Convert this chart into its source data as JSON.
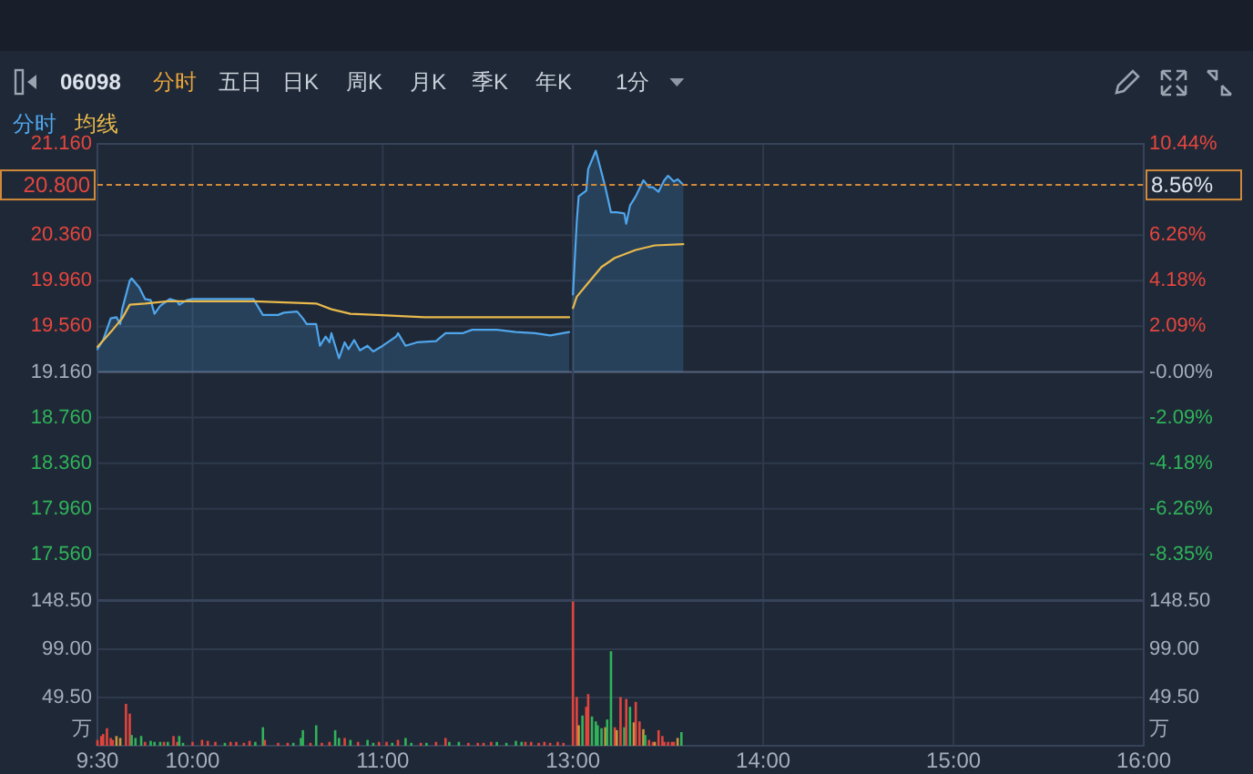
{
  "chart_data": [
    {
      "type": "line",
      "title": "06098",
      "annotations": [
        "分时",
        "五日",
        "日K",
        "周K",
        "月K",
        "季K",
        "年K",
        "1分"
      ],
      "legend": "top left",
      "grid": true,
      "tick_labels": "y",
      "xlim": [
        9.5,
        12
      ],
      "xticks": [
        9.5,
        10,
        11
      ],
      "ylim": [
        17.16,
        21.16
      ],
      "yticks": [
        {
          "value": 21.16,
          "label": "21.160"
        },
        {
          "value": 20.36,
          "label": "20.360"
        },
        {
          "value": 19.96,
          "label": "19.960"
        },
        {
          "value": 19.56,
          "label": "19.560"
        },
        {
          "value": 19.16,
          "label": "19.160"
        },
        {
          "value": 18.76,
          "label": "18.760"
        },
        {
          "value": 18.36,
          "label": "18.360"
        },
        {
          "value": 17.96,
          "label": "17.960"
        },
        {
          "value": 17.56,
          "label": "17.560"
        }
      ],
      "y2lim": [
        -10.44,
        10.44
      ],
      "ref_lines": [
        {
          "axis": "y",
          "value": 20.8,
          "label": "20.800",
          "color": "#d08a3a",
          "line_style": "dashed"
        }
      ],
      "series": [
        {
          "name": "分时",
          "type": "area",
          "color": "#4fa6ec",
          "x": [
            9.5,
            9.53,
            9.57,
            9.6,
            9.62,
            9.63,
            9.67,
            9.68,
            9.72,
            9.75,
            9.78,
            9.8,
            9.83,
            9.88,
            9.92,
            9.93,
            9.97,
            10,
            10.17,
            10.32,
            10.37,
            10.45,
            10.48,
            10.55,
            10.58,
            10.6,
            10.65,
            10.67,
            10.7,
            10.72,
            10.73,
            10.77,
            10.8,
            10.82,
            10.85,
            10.88,
            10.92,
            10.95,
            11,
            11.07,
            11.08,
            11.12,
            11.18,
            11.28,
            11.33,
            11.42,
            11.47,
            11.6,
            11.7,
            11.8,
            11.88,
            11.98
          ],
          "values": [
            19.36,
            19.44,
            19.63,
            19.64,
            19.58,
            19.71,
            19.96,
            19.98,
            19.9,
            19.8,
            19.79,
            19.67,
            19.74,
            19.8,
            19.78,
            19.75,
            19.79,
            19.8,
            19.8,
            19.8,
            19.66,
            19.66,
            19.68,
            19.69,
            19.63,
            19.58,
            19.58,
            19.39,
            19.47,
            19.42,
            19.5,
            19.28,
            19.42,
            19.36,
            19.44,
            19.35,
            19.39,
            19.34,
            19.39,
            19.47,
            19.5,
            19.39,
            19.42,
            19.43,
            19.5,
            19.5,
            19.53,
            19.53,
            19.51,
            19.5,
            19.48,
            19.51
          ]
        },
        {
          "name": "均线",
          "color": "#e8b94d",
          "x": [
            9.5,
            9.58,
            9.63,
            9.67,
            9.75,
            9.87,
            10.32,
            10.65,
            10.73,
            10.83,
            10.97,
            11.22,
            11.6,
            11.98
          ],
          "values": [
            19.38,
            19.53,
            19.63,
            19.75,
            19.76,
            19.78,
            19.78,
            19.76,
            19.71,
            19.67,
            19.66,
            19.64,
            19.64,
            19.64
          ]
        }
      ]
    },
    {
      "type": "line",
      "grid": true,
      "tick_labels": "y",
      "xlim": [
        13,
        16
      ],
      "xticks": [
        13,
        14,
        15,
        16
      ],
      "ylim": [
        17.16,
        21.16
      ],
      "y2lim": [
        -10.44,
        10.44
      ],
      "y2ticks": [
        {
          "value": 10.44,
          "label": "10.44%"
        },
        {
          "value": 6.26,
          "label": "6.26%"
        },
        {
          "value": 4.18,
          "label": "4.18%"
        },
        {
          "value": 2.09,
          "label": "2.09%"
        },
        {
          "value": 0,
          "label": "-0.00%"
        },
        {
          "value": -2.09,
          "label": "-2.09%"
        },
        {
          "value": -4.18,
          "label": "-4.18%"
        },
        {
          "value": -6.26,
          "label": "-6.26%"
        },
        {
          "value": -8.35,
          "label": "-8.35%"
        }
      ],
      "ref_lines": [
        {
          "axis": "y2",
          "value": 8.56,
          "label": "8.56%",
          "color": "#d08a3a",
          "line_style": "dashed"
        }
      ],
      "series": [
        {
          "type": "area",
          "color": "#4fa6ec",
          "x": [
            13,
            13.02,
            13.03,
            13.07,
            13.08,
            13.12,
            13.15,
            13.17,
            13.2,
            13.23,
            13.27,
            13.28,
            13.3,
            13.33,
            13.37,
            13.4,
            13.42,
            13.45,
            13.48,
            13.5,
            13.53,
            13.55,
            13.58
          ],
          "values": [
            19.84,
            20.48,
            20.7,
            20.75,
            20.94,
            21.1,
            20.91,
            20.78,
            20.56,
            20.56,
            20.55,
            20.46,
            20.62,
            20.7,
            20.84,
            20.78,
            20.78,
            20.74,
            20.84,
            20.88,
            20.83,
            20.85,
            20.8
          ]
        },
        {
          "color": "#e8b94d",
          "x": [
            13,
            13.02,
            13.07,
            13.15,
            13.22,
            13.33,
            13.43,
            13.58
          ],
          "values": [
            19.72,
            19.82,
            19.92,
            20.08,
            20.16,
            20.23,
            20.27,
            20.28
          ]
        }
      ]
    },
    {
      "type": "bar",
      "ylabel": "万",
      "grid": true,
      "xlim": [
        9.5,
        12
      ],
      "xticks": [
        {
          "value": 9.5,
          "label": "9:30"
        },
        {
          "value": 10,
          "label": "10:00"
        },
        {
          "value": 11,
          "label": "11:00"
        }
      ],
      "ylim": [
        0,
        148.5
      ],
      "yticks": [
        {
          "value": 148.5,
          "label": "148.50"
        },
        {
          "value": 99,
          "label": "99.00"
        },
        {
          "value": 49.5,
          "label": "49.50"
        }
      ],
      "x": [
        9.5,
        9.52,
        9.53,
        9.55,
        9.57,
        9.58,
        9.6,
        9.62,
        9.65,
        9.67,
        9.68,
        9.7,
        9.73,
        9.75,
        9.78,
        9.8,
        9.83,
        9.85,
        9.87,
        9.9,
        9.92,
        9.93,
        9.95,
        10,
        10.05,
        10.08,
        10.12,
        10.17,
        10.2,
        10.23,
        10.27,
        10.3,
        10.33,
        10.37,
        10.38,
        10.45,
        10.5,
        10.53,
        10.57,
        10.58,
        10.62,
        10.65,
        10.68,
        10.72,
        10.75,
        10.77,
        10.8,
        10.83,
        10.87,
        10.92,
        10.95,
        10.98,
        11.02,
        11.05,
        11.08,
        11.12,
        11.15,
        11.2,
        11.23,
        11.28,
        11.33,
        11.35,
        11.4,
        11.45,
        11.5,
        11.53,
        11.57,
        11.6,
        11.65,
        11.7,
        11.73,
        11.75,
        11.78,
        11.82,
        11.85,
        11.88,
        11.92,
        11.95
      ],
      "values": [
        6,
        10,
        12,
        18,
        8,
        6,
        10,
        8,
        43,
        33,
        11,
        8,
        10,
        4,
        5,
        4,
        4,
        4,
        4,
        10,
        4,
        10,
        3,
        4,
        6,
        5,
        4,
        3,
        4,
        4,
        3,
        5,
        4,
        19,
        6,
        3,
        3,
        3,
        8,
        16,
        3,
        21,
        3,
        4,
        16,
        8,
        8,
        6,
        4,
        6,
        3,
        4,
        4,
        3,
        6,
        8,
        3,
        3,
        3,
        4,
        8,
        4,
        4,
        3,
        3,
        3,
        4,
        4,
        3,
        5,
        4,
        4,
        4,
        3,
        4,
        3,
        4,
        3
      ],
      "colors": [
        "#e0453d",
        "#e0453d",
        "#e0453d",
        "#e0453d",
        "#e0453d",
        "#e0453d",
        "#c9973e",
        "#c9973e",
        "#e0453d",
        "#e0453d",
        "#30b35a",
        "#30b35a",
        "#30b35a",
        "#e0453d",
        "#30b35a",
        "#30b35a",
        "#30b35a",
        "#e0453d",
        "#30b35a",
        "#e0453d",
        "#e0453d",
        "#30b35a",
        "#30b35a",
        "#e0453d",
        "#e0453d",
        "#e0453d",
        "#e0453d",
        "#30b35a",
        "#e0453d",
        "#e0453d",
        "#e0453d",
        "#e0453d",
        "#30b35a",
        "#30b35a",
        "#e0453d",
        "#e0453d",
        "#e0453d",
        "#30b35a",
        "#30b35a",
        "#30b35a",
        "#e0453d",
        "#30b35a",
        "#e0453d",
        "#e0453d",
        "#30b35a",
        "#30b35a",
        "#e0453d",
        "#30b35a",
        "#e0453d",
        "#30b35a",
        "#30b35a",
        "#e0453d",
        "#e0453d",
        "#30b35a",
        "#e0453d",
        "#30b35a",
        "#30b35a",
        "#e0453d",
        "#30b35a",
        "#e0453d",
        "#e0453d",
        "#30b35a",
        "#30b35a",
        "#e0453d",
        "#e0453d",
        "#e0453d",
        "#e0453d",
        "#30b35a",
        "#30b35a",
        "#30b35a",
        "#30b35a",
        "#e0453d",
        "#e0453d",
        "#e0453d",
        "#e0453d",
        "#e0453d",
        "#e0453d",
        "#e0453d"
      ]
    },
    {
      "type": "bar",
      "y2label": "万",
      "grid": true,
      "xlim": [
        13,
        16
      ],
      "xticks": [
        {
          "value": 13,
          "label": "13:00"
        },
        {
          "value": 14,
          "label": "14:00"
        },
        {
          "value": 15,
          "label": "15:00"
        },
        {
          "value": 16,
          "label": "16:00"
        }
      ],
      "y2lim": [
        0,
        148.5
      ],
      "y2ticks": [
        {
          "value": 148.5,
          "label": "148.50"
        },
        {
          "value": 99,
          "label": "99.00"
        },
        {
          "value": 49.5,
          "label": "49.50"
        }
      ],
      "series": [
        {
          "axis": "y2",
          "x": [
            13,
            13.02,
            13.03,
            13.05,
            13.07,
            13.08,
            13.1,
            13.12,
            13.13,
            13.15,
            13.17,
            13.18,
            13.2,
            13.22,
            13.23,
            13.25,
            13.27,
            13.28,
            13.3,
            13.32,
            13.33,
            13.35,
            13.37,
            13.38,
            13.4,
            13.42,
            13.43,
            13.45,
            13.47,
            13.48,
            13.5,
            13.52,
            13.53,
            13.55,
            13.57
          ],
          "values": [
            148,
            50,
            21,
            31,
            40,
            53,
            30,
            25,
            21,
            18,
            19,
            27,
            97,
            19,
            16,
            50,
            19,
            48,
            40,
            24,
            45,
            25,
            17,
            11,
            6,
            4,
            4,
            16,
            10,
            4,
            4,
            4,
            4,
            8,
            14
          ],
          "colors": [
            "#e0453d",
            "#e0453d",
            "#c9973e",
            "#30b35a",
            "#e0453d",
            "#e0453d",
            "#30b35a",
            "#30b35a",
            "#30b35a",
            "#30b35a",
            "#c9973e",
            "#30b35a",
            "#30b35a",
            "#e0453d",
            "#c9973e",
            "#e0453d",
            "#30b35a",
            "#e0453d",
            "#30b35a",
            "#c9973e",
            "#e0453d",
            "#e0453d",
            "#c9973e",
            "#30b35a",
            "#e0453d",
            "#e0453d",
            "#c9973e",
            "#e0453d",
            "#e0453d",
            "#e0453d",
            "#e0453d",
            "#e0453d",
            "#e0453d",
            "#c9973e",
            "#30b35a"
          ]
        }
      ]
    }
  ]
}
